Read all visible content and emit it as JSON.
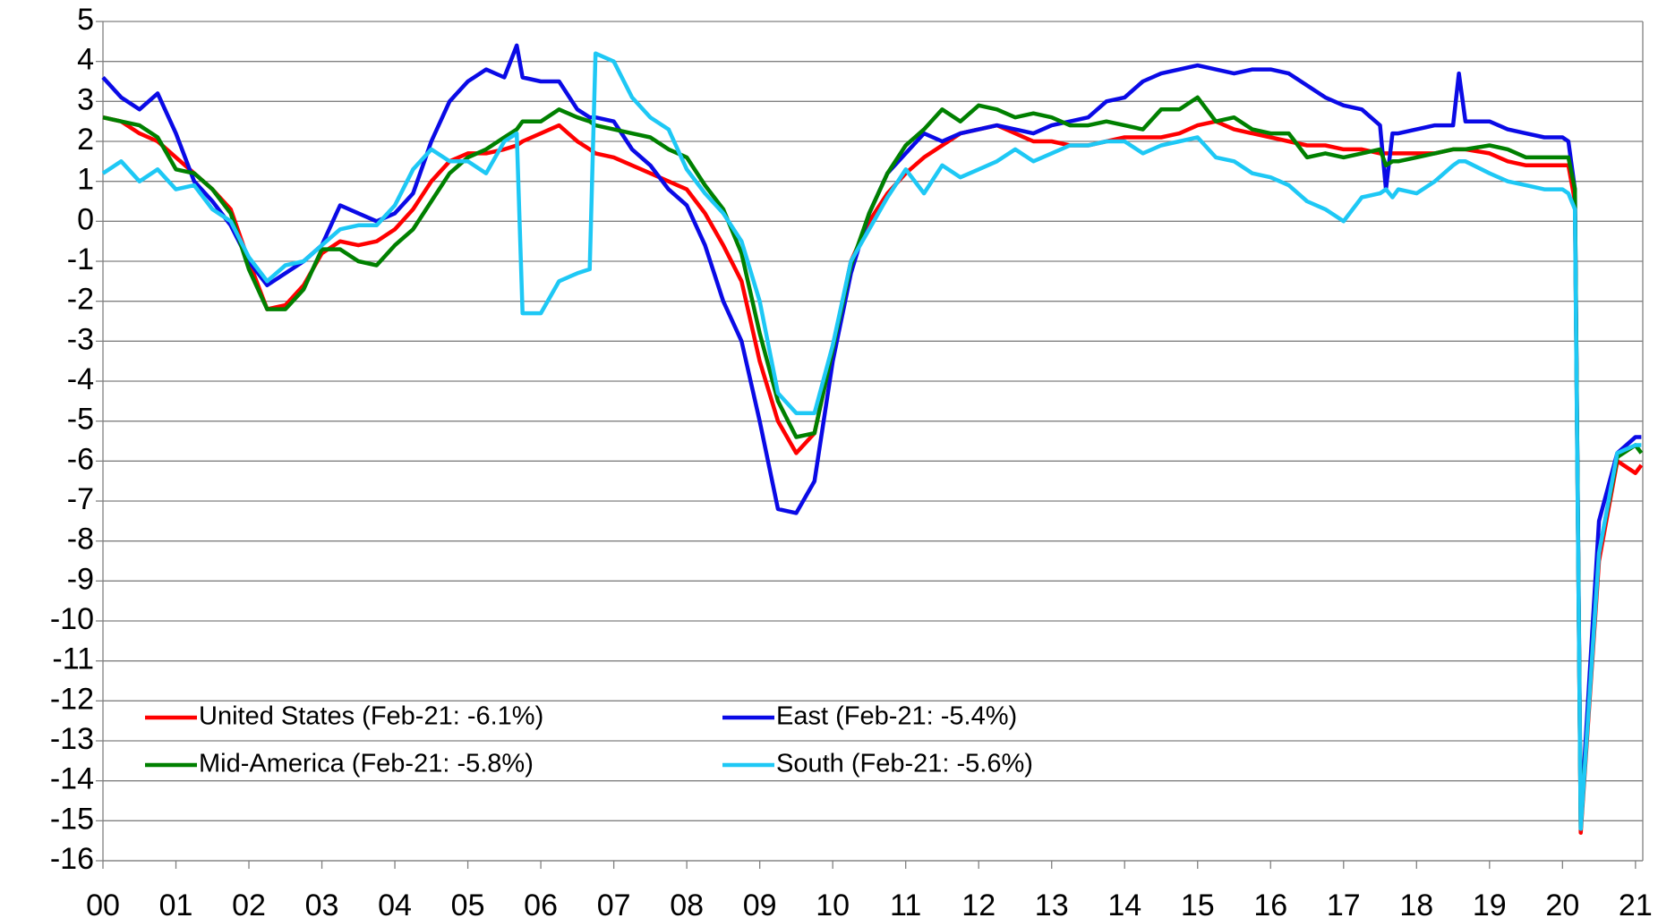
{
  "chart_data": {
    "type": "line",
    "x": [
      2000,
      2000.25,
      2000.5,
      2000.75,
      2001,
      2001.25,
      2001.5,
      2001.75,
      2002,
      2002.25,
      2002.5,
      2002.75,
      2003,
      2003.25,
      2003.5,
      2003.75,
      2004,
      2004.25,
      2004.5,
      2004.75,
      2005,
      2005.25,
      2005.5,
      2005.67,
      2005.75,
      2006,
      2006.25,
      2006.5,
      2006.67,
      2006.75,
      2007,
      2007.25,
      2007.5,
      2007.75,
      2008,
      2008.25,
      2008.5,
      2008.75,
      2009,
      2009.25,
      2009.5,
      2009.75,
      2010,
      2010.25,
      2010.5,
      2010.75,
      2011,
      2011.25,
      2011.5,
      2011.75,
      2012,
      2012.25,
      2012.5,
      2012.75,
      2013,
      2013.25,
      2013.5,
      2013.75,
      2014,
      2014.25,
      2014.5,
      2014.75,
      2015,
      2015.25,
      2015.5,
      2015.75,
      2016,
      2016.25,
      2016.5,
      2016.75,
      2017,
      2017.25,
      2017.5,
      2017.58,
      2017.67,
      2017.75,
      2018,
      2018.25,
      2018.5,
      2018.58,
      2018.67,
      2019,
      2019.25,
      2019.5,
      2019.75,
      2020,
      2020.08,
      2020.17,
      2020.25,
      2020.5,
      2020.75,
      2021,
      2021.08
    ],
    "series": [
      {
        "name": "United States (Feb-21: -6.1%)",
        "color": "#ff0000",
        "values": [
          2.6,
          2.5,
          2.2,
          2.0,
          1.6,
          1.2,
          0.8,
          0.3,
          -1.0,
          -2.2,
          -2.1,
          -1.6,
          -0.8,
          -0.5,
          -0.6,
          -0.5,
          -0.2,
          0.3,
          1.0,
          1.5,
          1.7,
          1.7,
          1.8,
          1.9,
          2.0,
          2.2,
          2.4,
          2.0,
          1.8,
          1.7,
          1.6,
          1.4,
          1.2,
          1.0,
          0.8,
          0.2,
          -0.6,
          -1.5,
          -3.5,
          -5.0,
          -5.8,
          -5.3,
          -3.2,
          -1.0,
          0.0,
          0.7,
          1.2,
          1.6,
          1.9,
          2.2,
          2.3,
          2.4,
          2.2,
          2.0,
          2.0,
          1.9,
          1.9,
          2.0,
          2.1,
          2.1,
          2.1,
          2.2,
          2.4,
          2.5,
          2.3,
          2.2,
          2.1,
          2.0,
          1.9,
          1.9,
          1.8,
          1.8,
          1.7,
          1.7,
          1.7,
          1.7,
          1.7,
          1.7,
          1.8,
          1.8,
          1.8,
          1.7,
          1.5,
          1.4,
          1.4,
          1.4,
          1.4,
          0.5,
          -15.3,
          -8.5,
          -6.0,
          -6.3,
          -6.1
        ]
      },
      {
        "name": "East (Feb-21: -5.4%)",
        "color": "#0a0ae6",
        "values": [
          3.6,
          3.1,
          2.8,
          3.2,
          2.2,
          1.0,
          0.5,
          -0.1,
          -1.0,
          -1.6,
          -1.3,
          -1.0,
          -0.6,
          0.4,
          0.2,
          0.0,
          0.2,
          0.7,
          2.0,
          3.0,
          3.5,
          3.8,
          3.6,
          4.4,
          3.6,
          3.5,
          3.5,
          2.8,
          2.6,
          2.6,
          2.5,
          1.8,
          1.4,
          0.8,
          0.4,
          -0.6,
          -2.0,
          -3.0,
          -5.0,
          -7.2,
          -7.3,
          -6.5,
          -3.5,
          -1.3,
          0.2,
          1.2,
          1.7,
          2.2,
          2.0,
          2.2,
          2.3,
          2.4,
          2.3,
          2.2,
          2.4,
          2.5,
          2.6,
          3.0,
          3.1,
          3.5,
          3.7,
          3.8,
          3.9,
          3.8,
          3.7,
          3.8,
          3.8,
          3.7,
          3.4,
          3.1,
          2.9,
          2.8,
          2.4,
          0.8,
          2.2,
          2.2,
          2.3,
          2.4,
          2.4,
          3.7,
          2.5,
          2.5,
          2.3,
          2.2,
          2.1,
          2.1,
          2.0,
          0.8,
          -15.0,
          -7.5,
          -5.8,
          -5.4,
          -5.4
        ]
      },
      {
        "name": "Mid-America (Feb-21: -5.8%)",
        "color": "#008000",
        "values": [
          2.6,
          2.5,
          2.4,
          2.1,
          1.3,
          1.2,
          0.8,
          0.2,
          -1.2,
          -2.2,
          -2.2,
          -1.7,
          -0.7,
          -0.7,
          -1.0,
          -1.1,
          -0.6,
          -0.2,
          0.5,
          1.2,
          1.6,
          1.8,
          2.1,
          2.3,
          2.5,
          2.5,
          2.8,
          2.6,
          2.5,
          2.4,
          2.3,
          2.2,
          2.1,
          1.8,
          1.6,
          0.9,
          0.3,
          -0.8,
          -2.8,
          -4.5,
          -5.4,
          -5.3,
          -3.2,
          -1.1,
          0.2,
          1.2,
          1.9,
          2.3,
          2.8,
          2.5,
          2.9,
          2.8,
          2.6,
          2.7,
          2.6,
          2.4,
          2.4,
          2.5,
          2.4,
          2.3,
          2.8,
          2.8,
          3.1,
          2.5,
          2.6,
          2.3,
          2.2,
          2.2,
          1.6,
          1.7,
          1.6,
          1.7,
          1.8,
          1.4,
          1.5,
          1.5,
          1.6,
          1.7,
          1.8,
          1.8,
          1.8,
          1.9,
          1.8,
          1.6,
          1.6,
          1.6,
          1.6,
          0.8,
          -15.2,
          -8.3,
          -5.9,
          -5.6,
          -5.8
        ]
      },
      {
        "name": "South (Feb-21: -5.6%)",
        "color": "#1ec8f5",
        "values": [
          1.2,
          1.5,
          1.0,
          1.3,
          0.8,
          0.9,
          0.3,
          0.0,
          -0.9,
          -1.5,
          -1.1,
          -1.0,
          -0.6,
          -0.2,
          -0.1,
          -0.1,
          0.4,
          1.3,
          1.8,
          1.5,
          1.5,
          1.2,
          2.0,
          2.2,
          -2.3,
          -2.3,
          -1.5,
          -1.3,
          -1.2,
          4.2,
          4.0,
          3.1,
          2.6,
          2.3,
          1.3,
          0.7,
          0.2,
          -0.5,
          -2.0,
          -4.3,
          -4.8,
          -4.8,
          -3.1,
          -1.0,
          -0.2,
          0.6,
          1.3,
          0.7,
          1.4,
          1.1,
          1.3,
          1.5,
          1.8,
          1.5,
          1.7,
          1.9,
          1.9,
          2.0,
          2.0,
          1.7,
          1.9,
          2.0,
          2.1,
          1.6,
          1.5,
          1.2,
          1.1,
          0.9,
          0.5,
          0.3,
          0.0,
          0.6,
          0.7,
          0.8,
          0.6,
          0.8,
          0.7,
          1.0,
          1.4,
          1.5,
          1.5,
          1.2,
          1.0,
          0.9,
          0.8,
          0.8,
          0.7,
          0.3,
          -15.2,
          -8.3,
          -5.8,
          -5.6,
          -5.6
        ]
      }
    ],
    "xlim": [
      2000,
      2021.1
    ],
    "xticks": [
      {
        "value": 2000,
        "label": "00"
      },
      {
        "value": 2001,
        "label": "01"
      },
      {
        "value": 2002,
        "label": "02"
      },
      {
        "value": 2003,
        "label": "03"
      },
      {
        "value": 2004,
        "label": "04"
      },
      {
        "value": 2005,
        "label": "05"
      },
      {
        "value": 2006,
        "label": "06"
      },
      {
        "value": 2007,
        "label": "07"
      },
      {
        "value": 2008,
        "label": "08"
      },
      {
        "value": 2009,
        "label": "09"
      },
      {
        "value": 2010,
        "label": "10"
      },
      {
        "value": 2011,
        "label": "11"
      },
      {
        "value": 2012,
        "label": "12"
      },
      {
        "value": 2013,
        "label": "13"
      },
      {
        "value": 2014,
        "label": "14"
      },
      {
        "value": 2015,
        "label": "15"
      },
      {
        "value": 2016,
        "label": "16"
      },
      {
        "value": 2017,
        "label": "17"
      },
      {
        "value": 2018,
        "label": "18"
      },
      {
        "value": 2019,
        "label": "19"
      },
      {
        "value": 2020,
        "label": "20"
      },
      {
        "value": 2021,
        "label": "21"
      }
    ],
    "ylim": [
      -16,
      5
    ],
    "yticks": [
      -16,
      -15,
      -14,
      -13,
      -12,
      -11,
      -10,
      -9,
      -8,
      -7,
      -6,
      -5,
      -4,
      -3,
      -2,
      -1,
      0,
      1,
      2,
      3,
      4,
      5
    ],
    "grid": true
  }
}
